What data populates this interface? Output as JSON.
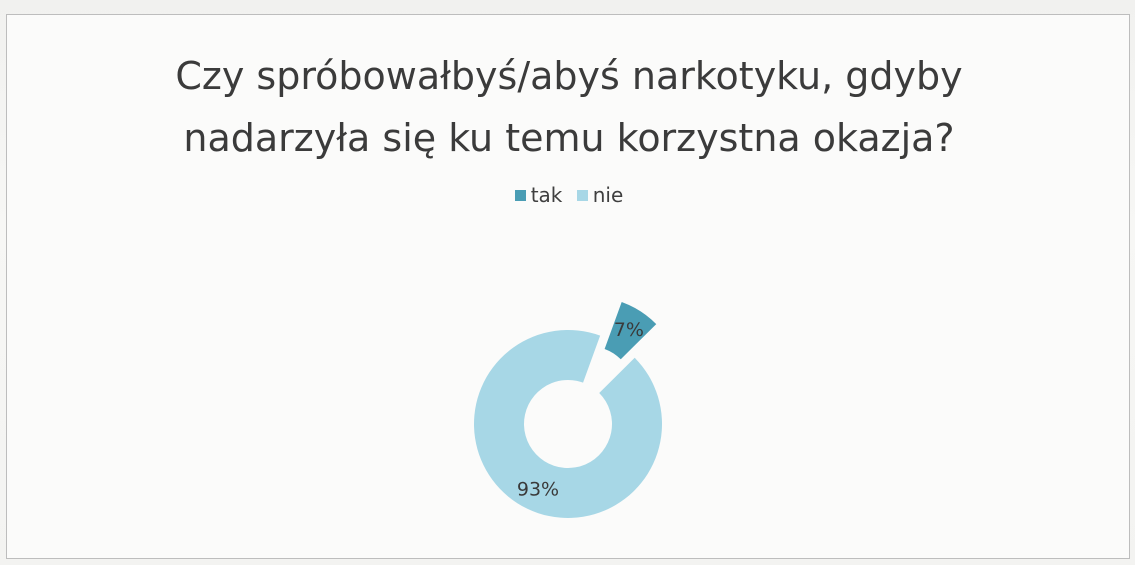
{
  "chart_data": {
    "type": "pie",
    "title_lines": [
      "Czy spróbowałbyś/abyś narkotyku, gdyby",
      "nadarzyła się ku temu korzystna okazja?"
    ],
    "categories": [
      "tak",
      "nie"
    ],
    "values": [
      7,
      93
    ],
    "value_labels": [
      "7%",
      "93%"
    ],
    "colors": [
      "#4a9db4",
      "#a7d7e6"
    ],
    "style": "doughnut",
    "exploded_slice": "tak",
    "legend_position": "top"
  }
}
